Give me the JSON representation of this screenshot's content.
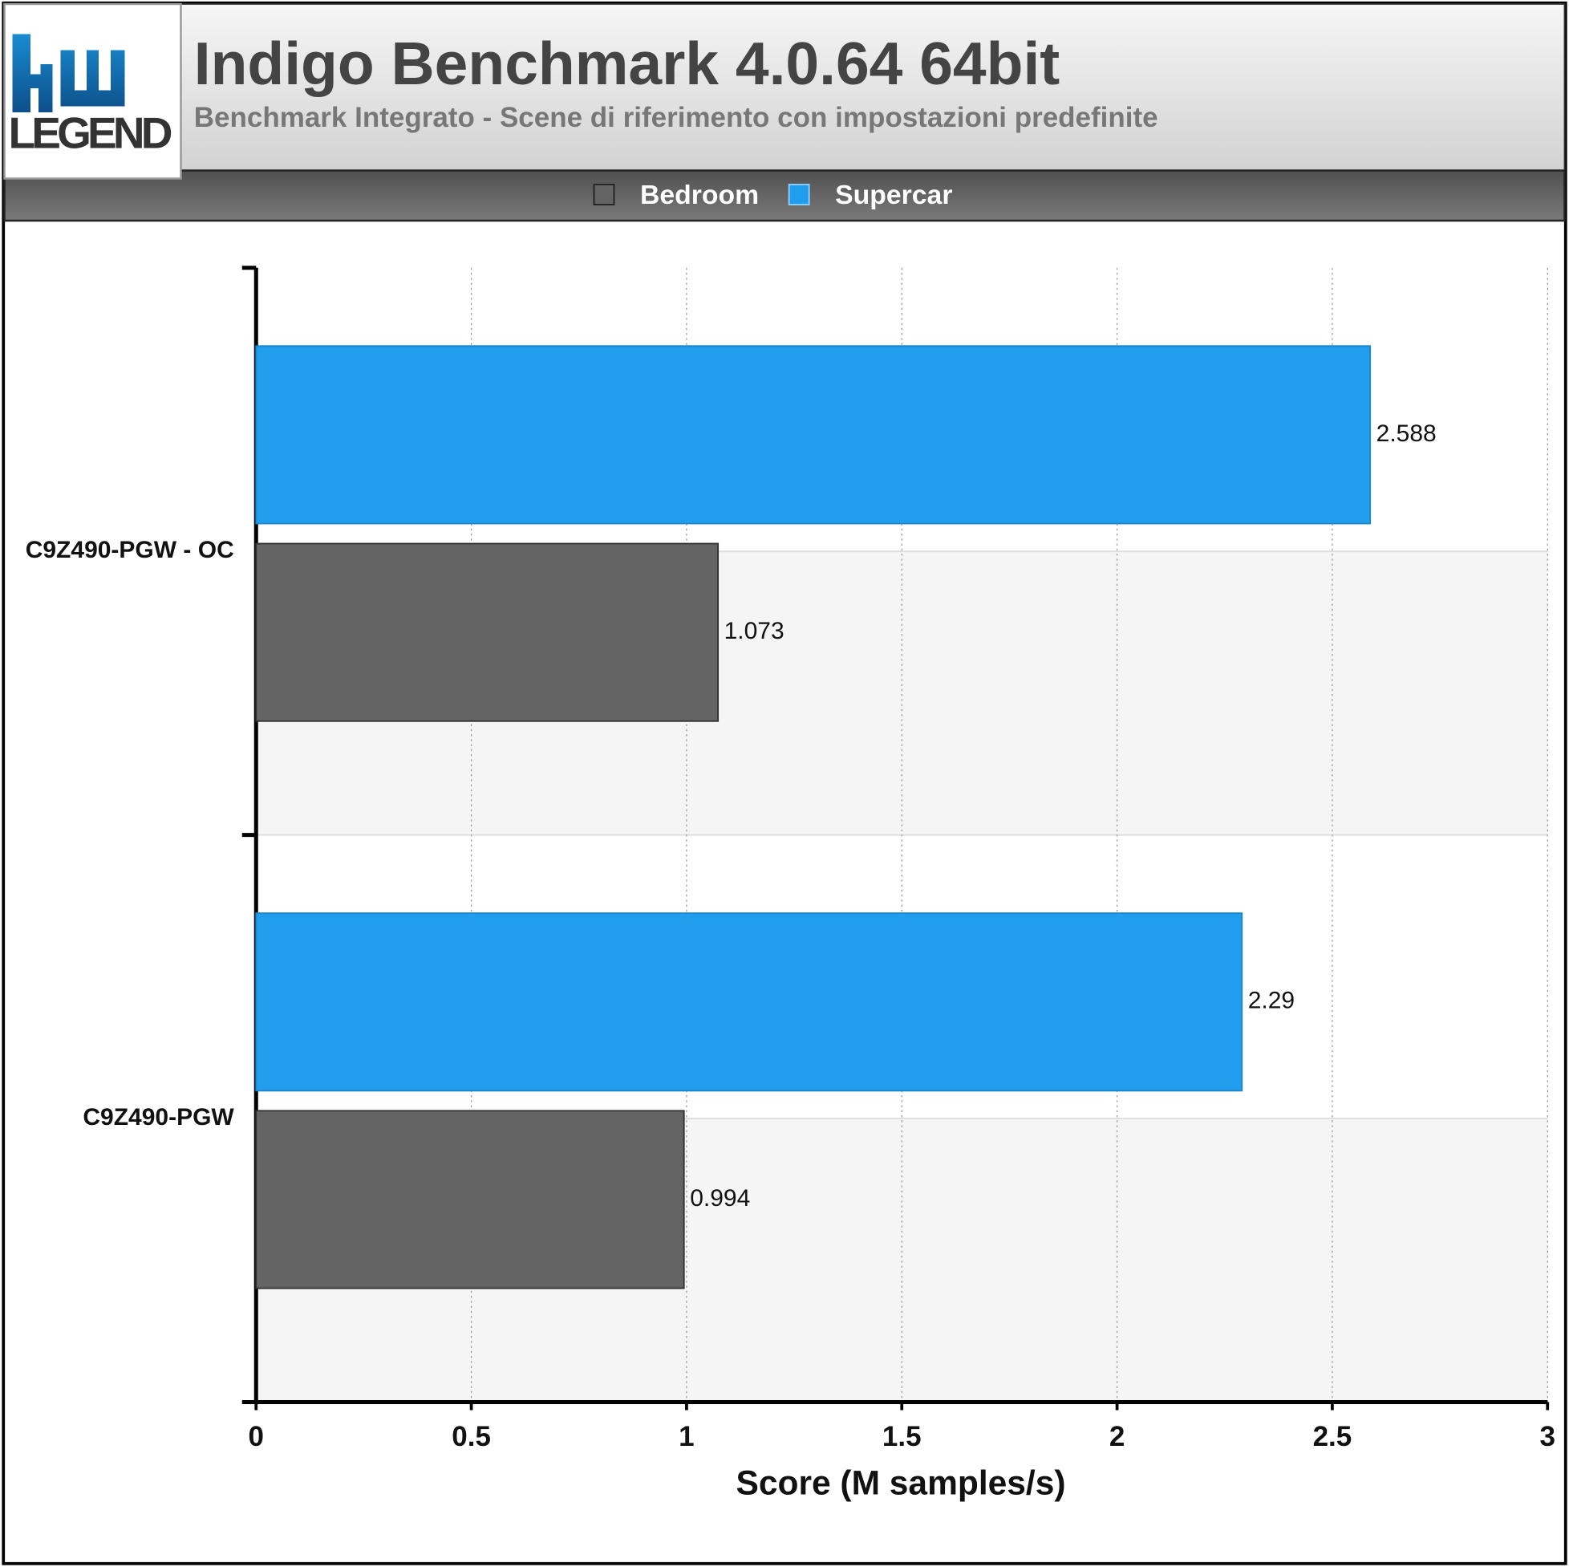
{
  "logo": "LEGEND",
  "chart_data": {
    "type": "bar",
    "orientation": "horizontal",
    "title": "Indigo Benchmark 4.0.64 64bit",
    "subtitle": "Benchmark Integrato - Scene di riferimento con impostazioni predefinite",
    "x_label": "Score (M samples/s)",
    "categories": [
      "C9Z490-PGW - OC",
      "C9Z490-PGW"
    ],
    "series": [
      {
        "name": "Bedroom",
        "color": "#646464",
        "values": [
          1.073,
          0.994
        ]
      },
      {
        "name": "Supercar",
        "color": "#219ded",
        "values": [
          2.588,
          2.29
        ]
      }
    ],
    "xlim": [
      0,
      3
    ],
    "xticks": [
      0,
      0.5,
      1,
      1.5,
      2,
      2.5,
      3
    ],
    "grid": true
  }
}
